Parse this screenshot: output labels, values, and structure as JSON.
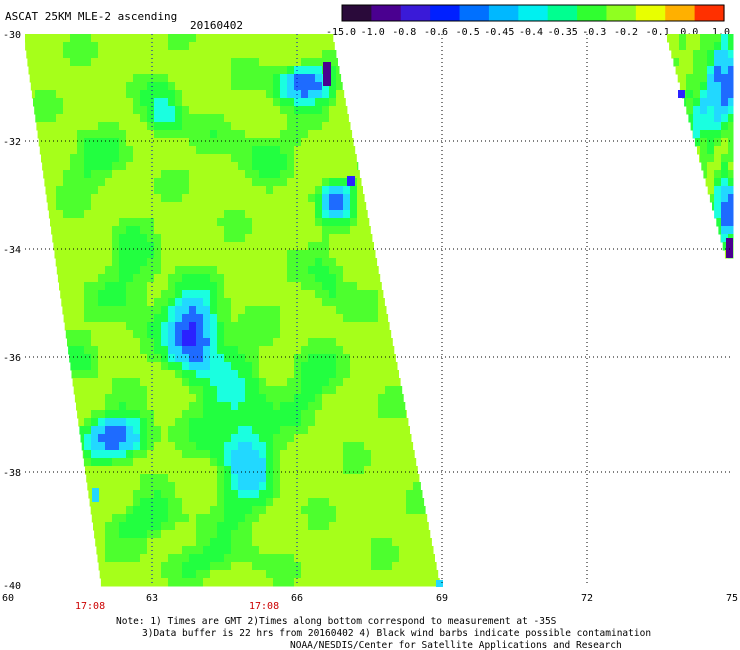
{
  "header": {
    "title": "ASCAT 25KM MLE-2 ascending",
    "date": "20160402"
  },
  "colorbar": {
    "tick_labels": [
      "-15.0",
      "-1.0",
      "-0.8",
      "-0.6",
      "-0.5",
      "-0.45",
      "-0.4",
      "-0.35",
      "-0.3",
      "-0.2",
      "-0.1",
      "0.0",
      "1.0"
    ],
    "colors": [
      "#2a0a3a",
      "#4a0090",
      "#3a1ad8",
      "#0020ff",
      "#0070ff",
      "#00b8ff",
      "#00f0f0",
      "#00ff90",
      "#30ff30",
      "#90ff20",
      "#e8ff00",
      "#ffb000",
      "#ff3000"
    ]
  },
  "map": {
    "lat_labels": [
      "-30",
      "-32",
      "-34",
      "-36",
      "-38",
      "-40"
    ],
    "lon_labels": [
      "60",
      "63",
      "66",
      "69",
      "72",
      "75"
    ],
    "time_labels": [
      "17:08",
      "17:08"
    ],
    "palette": {
      "lime": "#a6ff1a",
      "green": "#4dff2e",
      "brightgreen": "#22ff40",
      "cyan": "#1affe0",
      "lightblue": "#22d8ff",
      "blue": "#1e6bff",
      "deepblue": "#2a22ff",
      "purple": "#4a0090"
    }
  },
  "footer": {
    "line1": "Note: 1) Times are GMT 2)Times along bottom correspond to measurement at -35S",
    "line2": "3)Data buffer is 22 hrs from 20160402 4) Black wind barbs indicate possible contamination",
    "line3": "NOAA/NESDIS/Center for Satellite Applications and Research"
  }
}
